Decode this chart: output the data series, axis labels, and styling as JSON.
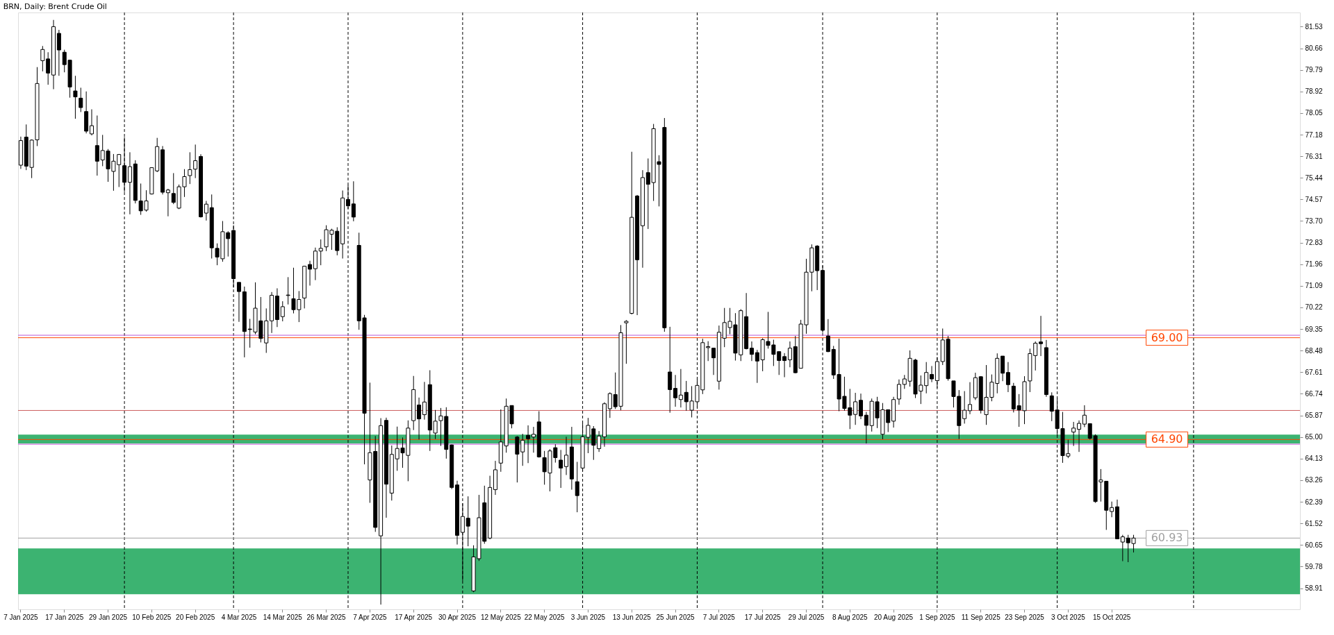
{
  "chart_data": {
    "type": "candlestick",
    "title": "BRN, Daily: Brent Crude Oil",
    "categories": [
      "7 Jan 2025",
      null,
      null,
      null,
      null,
      null,
      null,
      null,
      "17 Jan 2025",
      null,
      null,
      null,
      null,
      null,
      null,
      null,
      "29 Jan 2025",
      null,
      null,
      null,
      null,
      null,
      null,
      null,
      "10 Feb 2025",
      null,
      null,
      null,
      null,
      null,
      null,
      null,
      "20 Feb 2025",
      null,
      null,
      null,
      null,
      null,
      null,
      null,
      "4 Mar 2025",
      null,
      null,
      null,
      null,
      null,
      null,
      null,
      "14 Mar 2025",
      null,
      null,
      null,
      null,
      null,
      null,
      null,
      "26 Mar 2025",
      null,
      null,
      null,
      null,
      null,
      null,
      null,
      "7 Apr 2025",
      null,
      null,
      null,
      null,
      null,
      null,
      null,
      "17 Apr 2025",
      null,
      null,
      null,
      null,
      null,
      null,
      null,
      "30 Apr 2025",
      null,
      null,
      null,
      null,
      null,
      null,
      null,
      "12 May 2025",
      null,
      null,
      null,
      null,
      null,
      null,
      null,
      "22 May 2025",
      null,
      null,
      null,
      null,
      null,
      null,
      null,
      "3 Jun 2025",
      null,
      null,
      null,
      null,
      null,
      null,
      null,
      "13 Jun 2025",
      null,
      null,
      null,
      null,
      null,
      null,
      null,
      "25 Jun 2025",
      null,
      null,
      null,
      null,
      null,
      null,
      null,
      "7 Jul 2025",
      null,
      null,
      null,
      null,
      null,
      null,
      null,
      "17 Jul 2025",
      null,
      null,
      null,
      null,
      null,
      null,
      null,
      "29 Jul 2025",
      null,
      null,
      null,
      null,
      null,
      null,
      null,
      "8 Aug 2025",
      null,
      null,
      null,
      null,
      null,
      null,
      null,
      "20 Aug 2025",
      null,
      null,
      null,
      null,
      null,
      null,
      null,
      "1 Sep 2025",
      null,
      null,
      null,
      null,
      null,
      null,
      null,
      "11 Sep 2025",
      null,
      null,
      null,
      null,
      null,
      null,
      null,
      "23 Sep 2025",
      null,
      null,
      null,
      null,
      null,
      null,
      null,
      "3 Oct 2025",
      null,
      null,
      null,
      null,
      null,
      null,
      null,
      "15 Oct 2025",
      null,
      null,
      null,
      null,
      null,
      null,
      null,
      null,
      null,
      null,
      null,
      null,
      null,
      null,
      null,
      null,
      null,
      null,
      null,
      null,
      null,
      null,
      null,
      null,
      null,
      null,
      null,
      null,
      null,
      null,
      null,
      null,
      null,
      null
    ],
    "ohlc": [
      [
        75.95,
        77.1,
        75.8,
        76.94
      ],
      [
        77.08,
        77.59,
        75.75,
        75.91
      ],
      [
        75.86,
        76.99,
        75.43,
        76.96
      ],
      [
        76.97,
        79.9,
        76.72,
        79.24
      ],
      [
        80.16,
        80.75,
        79.73,
        80.61
      ],
      [
        80.23,
        80.5,
        79.19,
        79.66
      ],
      [
        79.58,
        81.8,
        79.01,
        81.53
      ],
      [
        81.26,
        81.4,
        79.55,
        80.59
      ],
      [
        80.5,
        80.6,
        79.69,
        80.0
      ],
      [
        80.18,
        80.2,
        78.67,
        79.1
      ],
      [
        78.94,
        79.55,
        77.82,
        78.7
      ],
      [
        78.65,
        79.07,
        78.09,
        78.27
      ],
      [
        78.11,
        78.92,
        77.23,
        77.32
      ],
      [
        77.21,
        78.2,
        77.15,
        77.54
      ],
      [
        76.74,
        77.95,
        75.53,
        76.11
      ],
      [
        76.16,
        77.17,
        75.91,
        76.54
      ],
      [
        76.52,
        76.6,
        75.28,
        75.8
      ],
      [
        75.7,
        76.4,
        74.92,
        76.11
      ],
      [
        75.97,
        76.4,
        75.07,
        76.38
      ],
      [
        75.93,
        77.08,
        74.87,
        75.26
      ],
      [
        75.26,
        76.47,
        73.97,
        75.89
      ],
      [
        76.0,
        76.15,
        74.41,
        74.53
      ],
      [
        74.51,
        75.21,
        73.95,
        74.11
      ],
      [
        74.14,
        74.94,
        74.08,
        74.51
      ],
      [
        74.79,
        75.86,
        74.77,
        75.85
      ],
      [
        75.72,
        77.05,
        75.67,
        76.7
      ],
      [
        76.57,
        76.72,
        74.77,
        74.86
      ],
      [
        74.84,
        75.0,
        73.89,
        74.95
      ],
      [
        74.81,
        75.63,
        74.38,
        74.45
      ],
      [
        74.22,
        75.17,
        74.18,
        75.08
      ],
      [
        75.08,
        75.79,
        74.67,
        75.49
      ],
      [
        75.53,
        76.47,
        75.19,
        75.77
      ],
      [
        75.79,
        76.78,
        75.43,
        76.13
      ],
      [
        76.3,
        76.39,
        73.84,
        73.87
      ],
      [
        74.02,
        74.51,
        73.72,
        74.38
      ],
      [
        74.24,
        74.77,
        72.19,
        72.62
      ],
      [
        72.6,
        72.8,
        71.92,
        72.25
      ],
      [
        72.18,
        73.7,
        72.06,
        73.27
      ],
      [
        73.23,
        73.29,
        72.27,
        72.99
      ],
      [
        73.32,
        73.53,
        71.02,
        71.38
      ],
      [
        71.23,
        71.23,
        69.64,
        70.86
      ],
      [
        70.85,
        71.06,
        68.21,
        69.25
      ],
      [
        69.35,
        69.76,
        68.6,
        69.33
      ],
      [
        69.23,
        71.23,
        69.14,
        70.19
      ],
      [
        69.68,
        70.64,
        68.81,
        68.97
      ],
      [
        68.79,
        70.18,
        68.39,
        69.68
      ],
      [
        69.68,
        70.84,
        69.19,
        70.71
      ],
      [
        70.68,
        70.99,
        69.43,
        69.73
      ],
      [
        69.85,
        70.47,
        69.66,
        70.25
      ],
      [
        70.7,
        71.44,
        70.34,
        70.72
      ],
      [
        70.57,
        71.82,
        69.98,
        70.13
      ],
      [
        70.13,
        70.88,
        69.63,
        70.54
      ],
      [
        70.6,
        71.9,
        70.18,
        71.88
      ],
      [
        71.95,
        72.1,
        71.1,
        71.76
      ],
      [
        71.78,
        72.63,
        71.32,
        72.49
      ],
      [
        72.49,
        72.96,
        71.92,
        72.6
      ],
      [
        72.66,
        73.53,
        72.49,
        73.35
      ],
      [
        73.17,
        73.39,
        72.54,
        73.33
      ],
      [
        73.29,
        73.45,
        72.32,
        72.51
      ],
      [
        72.78,
        74.93,
        72.19,
        74.63
      ],
      [
        74.57,
        75.15,
        74.19,
        74.31
      ],
      [
        74.39,
        75.3,
        73.69,
        73.86
      ],
      [
        72.72,
        73.23,
        69.32,
        69.68
      ],
      [
        69.8,
        69.92,
        63.9,
        65.96
      ],
      [
        63.27,
        67.19,
        62.35,
        64.37
      ],
      [
        64.42,
        65.04,
        61.18,
        61.36
      ],
      [
        61.02,
        65.76,
        58.25,
        65.46
      ],
      [
        65.67,
        65.78,
        61.75,
        63.1
      ],
      [
        62.74,
        64.66,
        62.44,
        64.3
      ],
      [
        64.12,
        65.42,
        63.64,
        64.54
      ],
      [
        64.56,
        64.98,
        63.76,
        64.36
      ],
      [
        64.26,
        65.67,
        63.22,
        65.36
      ],
      [
        65.66,
        67.46,
        65.28,
        66.91
      ],
      [
        66.29,
        66.59,
        64.9,
        65.73
      ],
      [
        65.9,
        67.22,
        65.7,
        66.41
      ],
      [
        67.11,
        67.69,
        64.44,
        65.28
      ],
      [
        65.16,
        66.09,
        64.92,
        65.64
      ],
      [
        65.66,
        66.17,
        64.64,
        65.85
      ],
      [
        65.83,
        66.2,
        64.13,
        64.5
      ],
      [
        64.68,
        64.7,
        62.9,
        62.97
      ],
      [
        63.07,
        63.24,
        60.67,
        61.04
      ],
      [
        61.16,
        62.33,
        59.21,
        61.8
      ],
      [
        61.73,
        62.61,
        60.6,
        61.41
      ],
      [
        58.8,
        60.64,
        58.75,
        60.17
      ],
      [
        60.1,
        62.67,
        60.01,
        61.75
      ],
      [
        62.35,
        63.04,
        60.7,
        60.8
      ],
      [
        60.93,
        63.44,
        60.88,
        62.97
      ],
      [
        62.88,
        64.04,
        62.67,
        63.68
      ],
      [
        63.95,
        66.11,
        63.6,
        64.8
      ],
      [
        64.64,
        66.55,
        64.37,
        66.24
      ],
      [
        66.27,
        66.27,
        65.35,
        65.53
      ],
      [
        65.0,
        65.04,
        63.17,
        64.31
      ],
      [
        64.4,
        65.13,
        63.84,
        64.87
      ],
      [
        65.07,
        65.47,
        63.95,
        64.93
      ],
      [
        65.0,
        65.41,
        64.37,
        65.11
      ],
      [
        65.61,
        66.04,
        64.17,
        64.2
      ],
      [
        64.17,
        64.44,
        63.08,
        63.6
      ],
      [
        63.55,
        64.51,
        62.81,
        64.44
      ],
      [
        64.57,
        64.71,
        63.97,
        64.17
      ],
      [
        64.07,
        64.48,
        62.95,
        63.75
      ],
      [
        63.81,
        65.01,
        63.47,
        64.27
      ],
      [
        64.6,
        65.41,
        62.88,
        63.31
      ],
      [
        63.2,
        64.0,
        61.97,
        62.64
      ],
      [
        63.75,
        65.57,
        63.63,
        65.01
      ],
      [
        64.99,
        65.77,
        64.35,
        65.47
      ],
      [
        65.33,
        65.44,
        64.08,
        64.67
      ],
      [
        64.53,
        65.24,
        64.4,
        65.04
      ],
      [
        65.01,
        66.4,
        64.61,
        66.34
      ],
      [
        66.14,
        66.8,
        65.77,
        66.75
      ],
      [
        66.71,
        67.6,
        66.13,
        66.22
      ],
      [
        66.24,
        69.51,
        66.08,
        69.2
      ],
      [
        69.6,
        69.71,
        67.95,
        69.66
      ],
      [
        69.98,
        76.49,
        69.94,
        73.85
      ],
      [
        74.71,
        74.75,
        69.91,
        72.14
      ],
      [
        73.51,
        75.75,
        71.82,
        75.45
      ],
      [
        75.65,
        76.22,
        73.38,
        75.18
      ],
      [
        75.25,
        77.61,
        74.51,
        77.42
      ],
      [
        76.09,
        76.35,
        74.29,
        75.98
      ],
      [
        77.47,
        77.85,
        69.24,
        69.4
      ],
      [
        67.62,
        69.44,
        65.98,
        66.91
      ],
      [
        66.96,
        67.5,
        66.22,
        66.58
      ],
      [
        66.51,
        67.74,
        66.19,
        66.69
      ],
      [
        66.8,
        67.26,
        66.06,
        66.42
      ],
      [
        66.08,
        67.05,
        65.79,
        66.45
      ],
      [
        66.42,
        67.36,
        66.17,
        67.08
      ],
      [
        66.9,
        68.96,
        66.73,
        68.8
      ],
      [
        68.6,
        68.86,
        68.06,
        68.64
      ],
      [
        68.58,
        68.58,
        67.5,
        68.19
      ],
      [
        67.25,
        69.49,
        66.91,
        69.22
      ],
      [
        68.98,
        70.2,
        68.62,
        69.61
      ],
      [
        69.41,
        70.2,
        69.14,
        69.66
      ],
      [
        69.52,
        69.99,
        68.08,
        68.38
      ],
      [
        68.31,
        70.15,
        68.06,
        70.09
      ],
      [
        69.85,
        70.8,
        68.53,
        68.56
      ],
      [
        68.58,
        68.85,
        68.06,
        68.33
      ],
      [
        68.4,
        68.51,
        67.18,
        68.06
      ],
      [
        68.11,
        68.98,
        67.65,
        68.92
      ],
      [
        68.85,
        70.04,
        68.56,
        68.69
      ],
      [
        68.71,
        68.92,
        67.86,
        68.33
      ],
      [
        68.44,
        68.44,
        67.5,
        68.08
      ],
      [
        68.24,
        68.38,
        67.41,
        68.08
      ],
      [
        68.11,
        68.85,
        67.81,
        68.58
      ],
      [
        68.64,
        69.07,
        67.57,
        67.59
      ],
      [
        67.77,
        69.72,
        67.77,
        69.55
      ],
      [
        69.52,
        72.18,
        69.16,
        71.64
      ],
      [
        71.64,
        72.76,
        70.87,
        72.62
      ],
      [
        72.69,
        72.73,
        70.92,
        71.7
      ],
      [
        71.71,
        71.91,
        69.2,
        69.3
      ],
      [
        69.07,
        69.75,
        68.42,
        68.44
      ],
      [
        68.53,
        68.67,
        67.34,
        67.5
      ],
      [
        67.52,
        68.96,
        66.04,
        66.53
      ],
      [
        66.64,
        67.43,
        66.06,
        66.15
      ],
      [
        66.18,
        66.94,
        65.32,
        65.88
      ],
      [
        65.91,
        66.78,
        65.49,
        66.42
      ],
      [
        66.48,
        66.75,
        65.72,
        65.85
      ],
      [
        65.88,
        66.01,
        64.74,
        65.47
      ],
      [
        65.46,
        66.55,
        65.22,
        66.44
      ],
      [
        66.42,
        66.62,
        65.36,
        65.77
      ],
      [
        65.11,
        66.37,
        64.91,
        66.1
      ],
      [
        66.1,
        66.1,
        65.2,
        65.58
      ],
      [
        65.64,
        66.62,
        65.38,
        66.51
      ],
      [
        66.53,
        67.32,
        66.3,
        67.12
      ],
      [
        67.12,
        67.5,
        66.94,
        67.34
      ],
      [
        67.25,
        68.49,
        67.03,
        68.17
      ],
      [
        68.1,
        68.15,
        66.57,
        66.73
      ],
      [
        66.85,
        67.48,
        66.33,
        67.09
      ],
      [
        67.07,
        68.02,
        66.76,
        67.6
      ],
      [
        67.52,
        67.86,
        67.21,
        67.34
      ],
      [
        67.27,
        68.22,
        66.98,
        68.04
      ],
      [
        68.04,
        69.37,
        67.9,
        68.91
      ],
      [
        68.94,
        69.07,
        67.27,
        67.35
      ],
      [
        67.26,
        67.26,
        66.19,
        66.63
      ],
      [
        66.64,
        66.89,
        64.92,
        65.46
      ],
      [
        65.74,
        66.85,
        65.54,
        66.08
      ],
      [
        66.06,
        67.21,
        65.92,
        66.31
      ],
      [
        66.58,
        67.59,
        66.49,
        67.39
      ],
      [
        67.43,
        67.45,
        65.95,
        66.08
      ],
      [
        65.9,
        67.9,
        65.49,
        66.6
      ],
      [
        66.6,
        67.52,
        66.44,
        67.21
      ],
      [
        67.16,
        68.37,
        66.76,
        68.17
      ],
      [
        68.26,
        68.26,
        67.25,
        67.57
      ],
      [
        67.6,
        68.02,
        66.81,
        67.11
      ],
      [
        67.05,
        67.18,
        65.99,
        66.13
      ],
      [
        66.26,
        66.73,
        65.41,
        66.09
      ],
      [
        66.06,
        67.45,
        65.52,
        67.23
      ],
      [
        67.26,
        68.56,
        66.81,
        68.36
      ],
      [
        68.28,
        68.85,
        67.68,
        68.78
      ],
      [
        68.83,
        69.88,
        68.26,
        68.76
      ],
      [
        68.6,
        68.91,
        66.62,
        66.71
      ],
      [
        66.66,
        66.8,
        65.64,
        66.04
      ],
      [
        66.09,
        66.55,
        65.05,
        65.34
      ],
      [
        65.34,
        66.01,
        63.96,
        64.25
      ],
      [
        64.23,
        64.89,
        64.15,
        64.33
      ],
      [
        65.2,
        65.61,
        64.64,
        65.36
      ],
      [
        65.31,
        65.67,
        64.4,
        65.55
      ],
      [
        65.52,
        66.28,
        65.4,
        65.88
      ],
      [
        65.54,
        65.54,
        64.9,
        64.95
      ],
      [
        65.05,
        65.11,
        62.35,
        62.4
      ],
      [
        63.19,
        63.71,
        62.4,
        63.27
      ],
      [
        63.22,
        63.22,
        61.26,
        62.05
      ],
      [
        62.0,
        62.4,
        61.77,
        62.16
      ],
      [
        62.19,
        62.48,
        60.9,
        60.9
      ],
      [
        60.77,
        61.06,
        60.0,
        60.98
      ],
      [
        60.93,
        61.06,
        59.96,
        60.74
      ],
      [
        60.71,
        61.06,
        60.35,
        60.93
      ],
      null,
      null,
      null,
      null,
      null,
      null,
      null,
      null,
      null,
      null,
      null,
      null,
      null,
      null,
      null,
      null,
      null,
      null,
      null,
      null,
      null,
      null,
      null,
      null,
      null,
      null,
      null,
      null,
      null,
      null
    ],
    "colors": [
      "#ffffff",
      "#000000",
      "#ffffff",
      "#ffffff",
      "#ffffff",
      "#000000",
      "#ffffff",
      "#000000",
      "#000000",
      "#000000",
      "#000000",
      "#000000",
      "#000000",
      "#ffffff",
      "#000000",
      "#ffffff",
      "#000000",
      "#ffffff",
      "#ffffff",
      "#000000",
      "#ffffff",
      "#000000",
      "#000000",
      "#ffffff",
      "#ffffff",
      "#ffffff",
      "#000000",
      "#ffffff",
      "#000000",
      "#ffffff",
      "#ffffff",
      "#ffffff",
      "#ffffff",
      "#000000",
      "#ffffff",
      "#000000",
      "#000000",
      "#ffffff",
      "#000000",
      "#000000",
      "#000000",
      "#000000",
      "#000000",
      "#ffffff",
      "#000000",
      "#ffffff",
      "#ffffff",
      "#000000",
      "#ffffff",
      "#ffffff",
      "#000000",
      "#ffffff",
      "#ffffff",
      "#000000",
      "#ffffff",
      "#ffffff",
      "#ffffff",
      "#ffffff",
      "#000000",
      "#ffffff",
      "#000000",
      "#000000",
      "#000000",
      "#000000",
      "#ffffff",
      "#000000",
      "#ffffff",
      "#000000",
      "#ffffff",
      "#ffffff",
      "#000000",
      "#ffffff",
      "#ffffff",
      "#000000",
      "#ffffff",
      "#000000",
      "#ffffff",
      "#ffffff",
      "#000000",
      "#000000",
      "#000000",
      "#ffffff",
      "#000000",
      "#ffffff",
      "#ffffff",
      "#000000",
      "#ffffff",
      "#ffffff",
      "#ffffff",
      "#ffffff",
      "#000000",
      "#000000",
      "#ffffff",
      "#000000",
      "#ffffff",
      "#000000",
      "#000000",
      "#ffffff",
      "#000000",
      "#000000",
      "#ffffff",
      "#000000",
      "#000000",
      "#ffffff",
      "#ffffff",
      "#000000",
      "#ffffff",
      "#ffffff",
      "#ffffff",
      "#000000",
      "#ffffff",
      "#ffffff",
      "#ffffff",
      "#000000",
      "#ffffff",
      "#000000",
      "#ffffff",
      "#000000",
      "#000000",
      "#000000",
      "#000000",
      "#ffffff",
      "#000000",
      "#ffffff",
      "#ffffff",
      "#ffffff",
      "#ffffff",
      "#000000",
      "#ffffff",
      "#ffffff",
      "#ffffff",
      "#000000",
      "#ffffff",
      "#000000",
      "#000000",
      "#000000",
      "#ffffff",
      "#000000",
      "#000000",
      "#000000",
      "#000000",
      "#ffffff",
      "#000000",
      "#ffffff",
      "#ffffff",
      "#ffffff",
      "#000000",
      "#000000",
      "#000000",
      "#000000",
      "#000000",
      "#000000",
      "#000000",
      "#ffffff",
      "#000000",
      "#000000",
      "#ffffff",
      "#000000",
      "#ffffff",
      "#000000",
      "#ffffff",
      "#ffffff",
      "#ffffff",
      "#ffffff",
      "#000000",
      "#ffffff",
      "#ffffff",
      "#000000",
      "#ffffff",
      "#ffffff",
      "#000000",
      "#000000",
      "#000000",
      "#ffffff",
      "#ffffff",
      "#ffffff",
      "#000000",
      "#ffffff",
      "#ffffff",
      "#ffffff",
      "#000000",
      "#000000",
      "#000000",
      "#000000",
      "#ffffff",
      "#ffffff",
      "#ffffff",
      "#000000",
      "#000000",
      "#000000",
      "#000000",
      "#000000",
      "#ffffff",
      "#ffffff",
      "#ffffff",
      "#ffffff",
      "#000000",
      "#000000",
      "#ffffff",
      "#000000",
      "#ffffff",
      "#000000",
      "#ffffff",
      "#000000",
      "#ffffff",
      null,
      null,
      null,
      null,
      null,
      null,
      null,
      null,
      null,
      null,
      null,
      null,
      null,
      null,
      null,
      null,
      null,
      null,
      null,
      null,
      null,
      null,
      null,
      null,
      null,
      null,
      null,
      null,
      null,
      null
    ],
    "ylim": [
      58.06,
      82.1
    ],
    "yticks": [
      81.53,
      80.66,
      79.79,
      78.92,
      78.05,
      77.18,
      76.31,
      75.44,
      74.57,
      {
        "value": 73.7,
        "label": "73.70"
      },
      72.83,
      71.96,
      71.09,
      70.22,
      69.35,
      68.48,
      67.61,
      66.74,
      65.87,
      {
        "value": 65,
        "label": "65.00"
      },
      64.13,
      63.26,
      62.39,
      61.52,
      60.65,
      59.78,
      58.91
    ],
    "bands": [
      {
        "axis": "y",
        "from": 58.67,
        "to": 60.51,
        "color": "#3cb371"
      },
      {
        "axis": "y",
        "from": 64.74,
        "to": 65.1,
        "color": "#3cb371"
      }
    ],
    "ref_lines": [
      {
        "axis": "y",
        "value": 60.93,
        "label": "60.93",
        "color": "#a0a0a0"
      },
      {
        "axis": "y",
        "value": 69.1,
        "color": "#ba55d3"
      },
      {
        "axis": "y",
        "value": 64.71,
        "color": "#ba55d3"
      },
      {
        "axis": "y",
        "value": 66.07,
        "color": "#cd5c5c"
      },
      {
        "axis": "y",
        "value": 69.0,
        "label": "69.00",
        "color": "#ff4500"
      },
      {
        "axis": "y",
        "value": 64.9,
        "label": "64.90",
        "color": "#ff4500"
      }
    ]
  }
}
